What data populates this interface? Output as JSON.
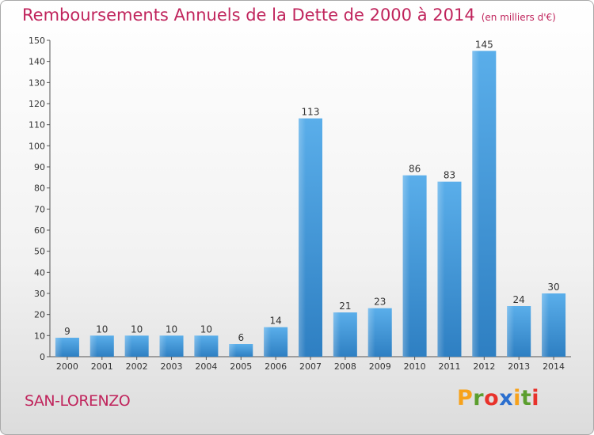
{
  "title": "Remboursements Annuels de la Dette de 2000 à 2014",
  "unit": "(en milliers d'€)",
  "commune": "SAN-LORENZO",
  "logo": "Proxiti",
  "colors": {
    "title": "#c0245c",
    "bar_top": "#5aaeea",
    "bar_bottom": "#2e7fc2",
    "logo": [
      "#f7a21b",
      "#5b9e2e",
      "#e8322b",
      "#2b6fcf",
      "#f7a21b",
      "#5b9e2e",
      "#e8322b"
    ]
  },
  "chart_data": {
    "type": "bar",
    "title": "Remboursements Annuels de la Dette de 2000 à 2014",
    "subtitle": "(en milliers d'€)",
    "xlabel": "",
    "ylabel": "",
    "categories": [
      "2000",
      "2001",
      "2002",
      "2003",
      "2004",
      "2005",
      "2006",
      "2007",
      "2008",
      "2009",
      "2010",
      "2011",
      "2012",
      "2013",
      "2014"
    ],
    "values": [
      9,
      10,
      10,
      10,
      10,
      6,
      14,
      113,
      21,
      23,
      86,
      83,
      145,
      24,
      30
    ],
    "ylim": [
      0,
      150
    ],
    "yticks": [
      0,
      10,
      20,
      30,
      40,
      50,
      60,
      70,
      80,
      90,
      100,
      110,
      120,
      130,
      140,
      150
    ],
    "grid": false,
    "data_labels": true
  }
}
